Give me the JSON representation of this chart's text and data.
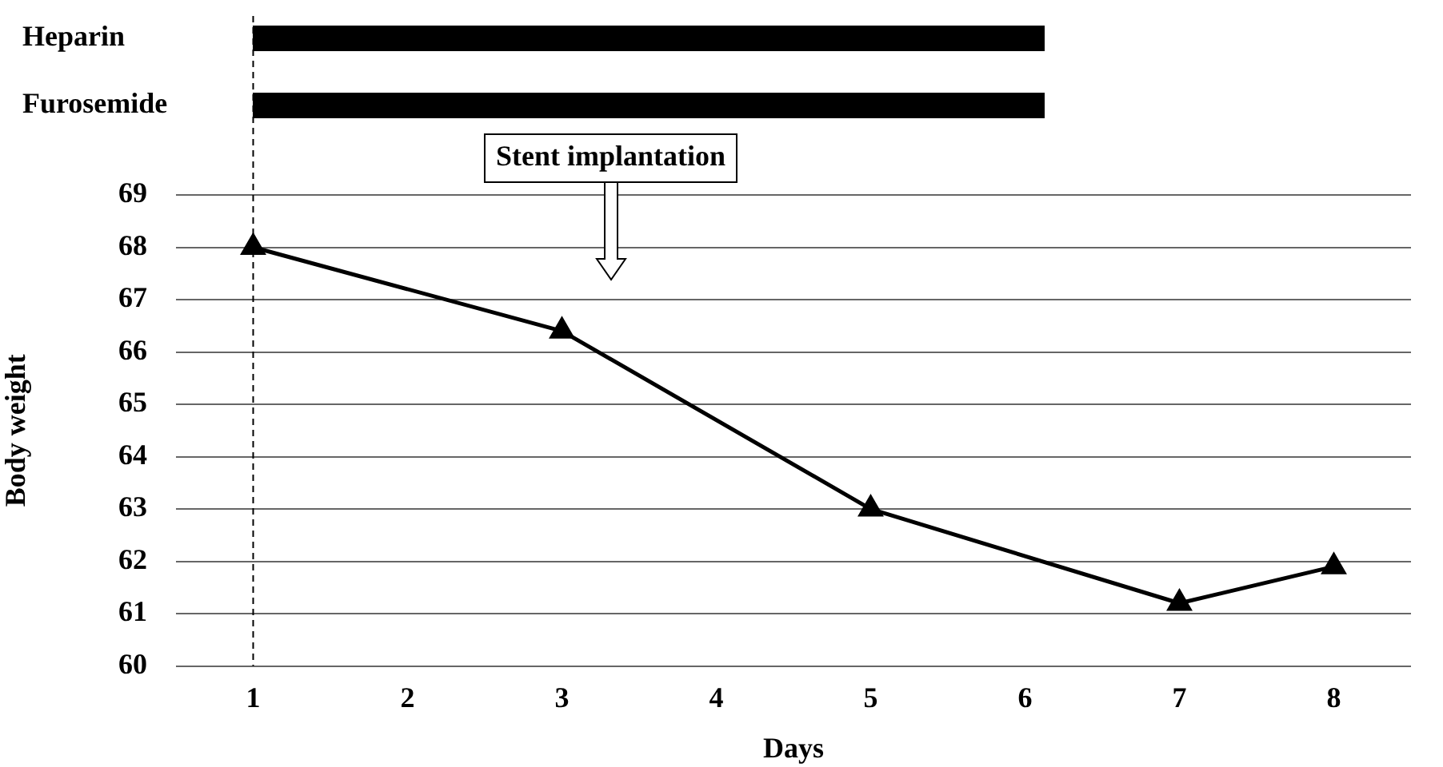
{
  "chart_data": {
    "type": "line",
    "xlabel": "Days",
    "ylabel": "Body weight",
    "x": [
      1,
      3,
      5,
      7,
      8
    ],
    "series": [
      {
        "color": "#000000",
        "values": [
          68,
          66.4,
          63,
          61.2,
          61.9
        ]
      }
    ],
    "xlim": [
      0.5,
      8.5
    ],
    "xticks": [
      1,
      2,
      3,
      4,
      5,
      6,
      7,
      8
    ],
    "ylim": [
      60,
      69
    ],
    "yticks": [
      60,
      61,
      62,
      63,
      64,
      65,
      66,
      67,
      68,
      69
    ],
    "grid": "y",
    "legend": false,
    "marker": "triangle",
    "line_style": "solid",
    "ref_lines": [
      {
        "axis": "x",
        "value": 1,
        "color": "#000000",
        "line_style": "dashed"
      }
    ],
    "annotations": [
      "Heparin",
      "Furosemide",
      "Stent implantation"
    ]
  }
}
